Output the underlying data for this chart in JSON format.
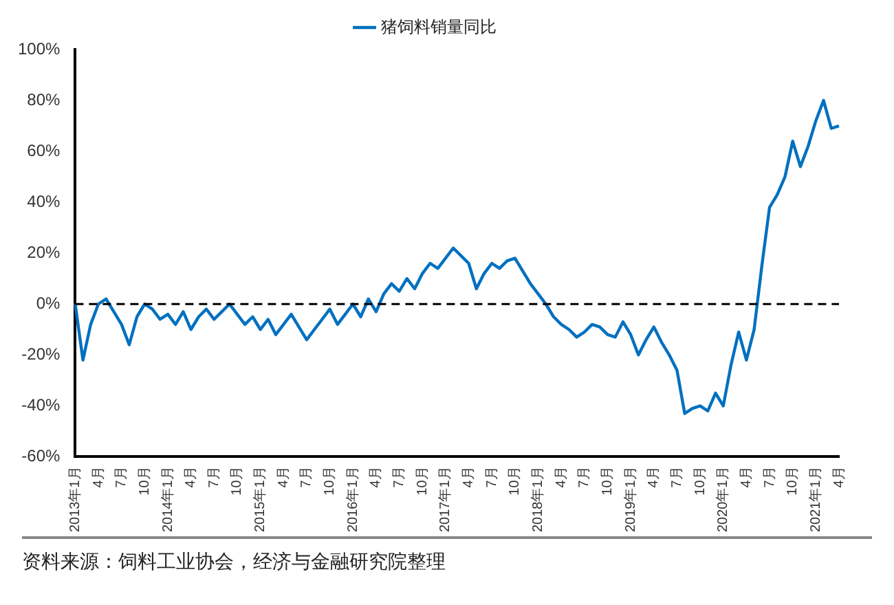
{
  "chart_data": {
    "type": "line",
    "categories": [
      "2013年1月",
      null,
      null,
      "4月",
      null,
      null,
      "7月",
      null,
      null,
      "10月",
      null,
      null,
      "2014年1月",
      null,
      null,
      "4月",
      null,
      null,
      "7月",
      null,
      null,
      "10月",
      null,
      null,
      "2015年1月",
      null,
      null,
      "4月",
      null,
      null,
      "7月",
      null,
      null,
      "10月",
      null,
      null,
      "2016年1月",
      null,
      null,
      "4月",
      null,
      null,
      "7月",
      null,
      null,
      "10月",
      null,
      null,
      "2017年1月",
      null,
      null,
      "4月",
      null,
      null,
      "7月",
      null,
      null,
      "10月",
      null,
      null,
      "2018年1月",
      null,
      null,
      "4月",
      null,
      null,
      "7月",
      null,
      null,
      "10月",
      null,
      null,
      "2019年1月",
      null,
      null,
      "4月",
      null,
      null,
      "7月",
      null,
      null,
      "10月",
      null,
      null,
      "2020年1月",
      null,
      null,
      "4月",
      null,
      null,
      "7月",
      null,
      null,
      "10月",
      null,
      null,
      "2021年1月",
      null,
      null,
      "4月"
    ],
    "series": [
      {
        "name": "猪饲料销量同比",
        "color": "#0070c0",
        "values": [
          0,
          -22,
          -8,
          0,
          2,
          -3,
          -8,
          -16,
          -5,
          0,
          -2,
          -6,
          -4,
          -8,
          -3,
          -10,
          -5,
          -2,
          -6,
          -3,
          0,
          -4,
          -8,
          -5,
          -10,
          -6,
          -12,
          -8,
          -4,
          -9,
          -14,
          -10,
          -6,
          -2,
          -8,
          -4,
          0,
          -5,
          2,
          -3,
          4,
          8,
          5,
          10,
          6,
          12,
          16,
          14,
          18,
          22,
          19,
          16,
          6,
          12,
          16,
          14,
          17,
          18,
          13,
          8,
          4,
          0,
          -5,
          -8,
          -10,
          -13,
          -11,
          -8,
          -9,
          -12,
          -13,
          -7,
          -12,
          -20,
          -14,
          -9,
          -15,
          -20,
          -26,
          -43,
          -41,
          -40,
          -42,
          -35,
          -40,
          -24,
          -11,
          -22,
          -10,
          15,
          38,
          43,
          50,
          64,
          54,
          62,
          72,
          80,
          69,
          70
        ]
      }
    ],
    "ylim": [
      -60,
      100
    ],
    "yticks": [
      {
        "value": -60,
        "label": "-60%"
      },
      {
        "value": -40,
        "label": "-40%"
      },
      {
        "value": -20,
        "label": "-20%"
      },
      {
        "value": 0,
        "label": "0%"
      },
      {
        "value": 20,
        "label": "20%"
      },
      {
        "value": 40,
        "label": "40%"
      },
      {
        "value": 60,
        "label": "60%"
      },
      {
        "value": 80,
        "label": "80%"
      },
      {
        "value": 100,
        "label": "100%"
      }
    ],
    "ref_lines": [
      {
        "axis": "y",
        "value": 0,
        "color": "#000000",
        "line_style": "dashed"
      }
    ],
    "legend": "top",
    "grid": false,
    "marker": "none",
    "line_style": "solid",
    "annotations": [
      "资料来源：饲料工业协会，经济与金融研究院整理"
    ]
  }
}
